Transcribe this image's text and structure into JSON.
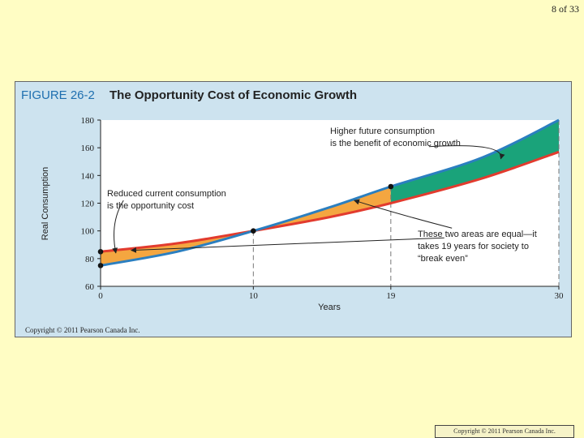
{
  "slide": {
    "number_text": "8 of 33"
  },
  "figure": {
    "label": "FIGURE 26-2",
    "title": "The Opportunity Cost of Economic Growth",
    "copyright": "Copyright © 2011 Pearson Canada Inc."
  },
  "footer": {
    "copyright": "Copyright © 2011 Pearson Canada Inc."
  },
  "colors": {
    "high_growth_line": "#2b7fc0",
    "low_growth_line": "#e23b2e",
    "cost_area": "#f4a640",
    "benefit_area": "#1aa37a",
    "plot_background": "#ffffff",
    "figure_background": "#cde3ef"
  },
  "chart_data": {
    "type": "line",
    "xlabel": "Years",
    "ylabel": "Real Consumption",
    "xlim": [
      0,
      30
    ],
    "ylim": [
      60,
      180
    ],
    "x_ticks": [
      0,
      10,
      19,
      30
    ],
    "y_ticks": [
      60,
      80,
      100,
      120,
      140,
      160,
      180
    ],
    "series": [
      {
        "key": "high",
        "color": "#2b7fc0",
        "points": [
          [
            0,
            75
          ],
          [
            5,
            85
          ],
          [
            10,
            100
          ],
          [
            15,
            117
          ],
          [
            19,
            132
          ],
          [
            25,
            153
          ],
          [
            30,
            180
          ]
        ]
      },
      {
        "key": "low",
        "color": "#e23b2e",
        "points": [
          [
            0,
            85
          ],
          [
            5,
            91
          ],
          [
            10,
            100
          ],
          [
            15,
            110
          ],
          [
            19,
            120
          ],
          [
            25,
            138
          ],
          [
            30,
            157
          ]
        ]
      }
    ],
    "markers": [
      [
        0,
        85
      ],
      [
        0,
        75
      ],
      [
        10,
        100
      ],
      [
        19,
        132
      ]
    ],
    "annotations": [
      {
        "lines": [
          "Higher future consumption",
          "is the benefit of economic growth"
        ]
      },
      {
        "lines": [
          "Reduced current consumption",
          "is the opportunity cost"
        ]
      },
      {
        "lines": [
          "These two areas are equal—it",
          "takes 19 years for society to",
          "“break even”"
        ]
      }
    ]
  }
}
